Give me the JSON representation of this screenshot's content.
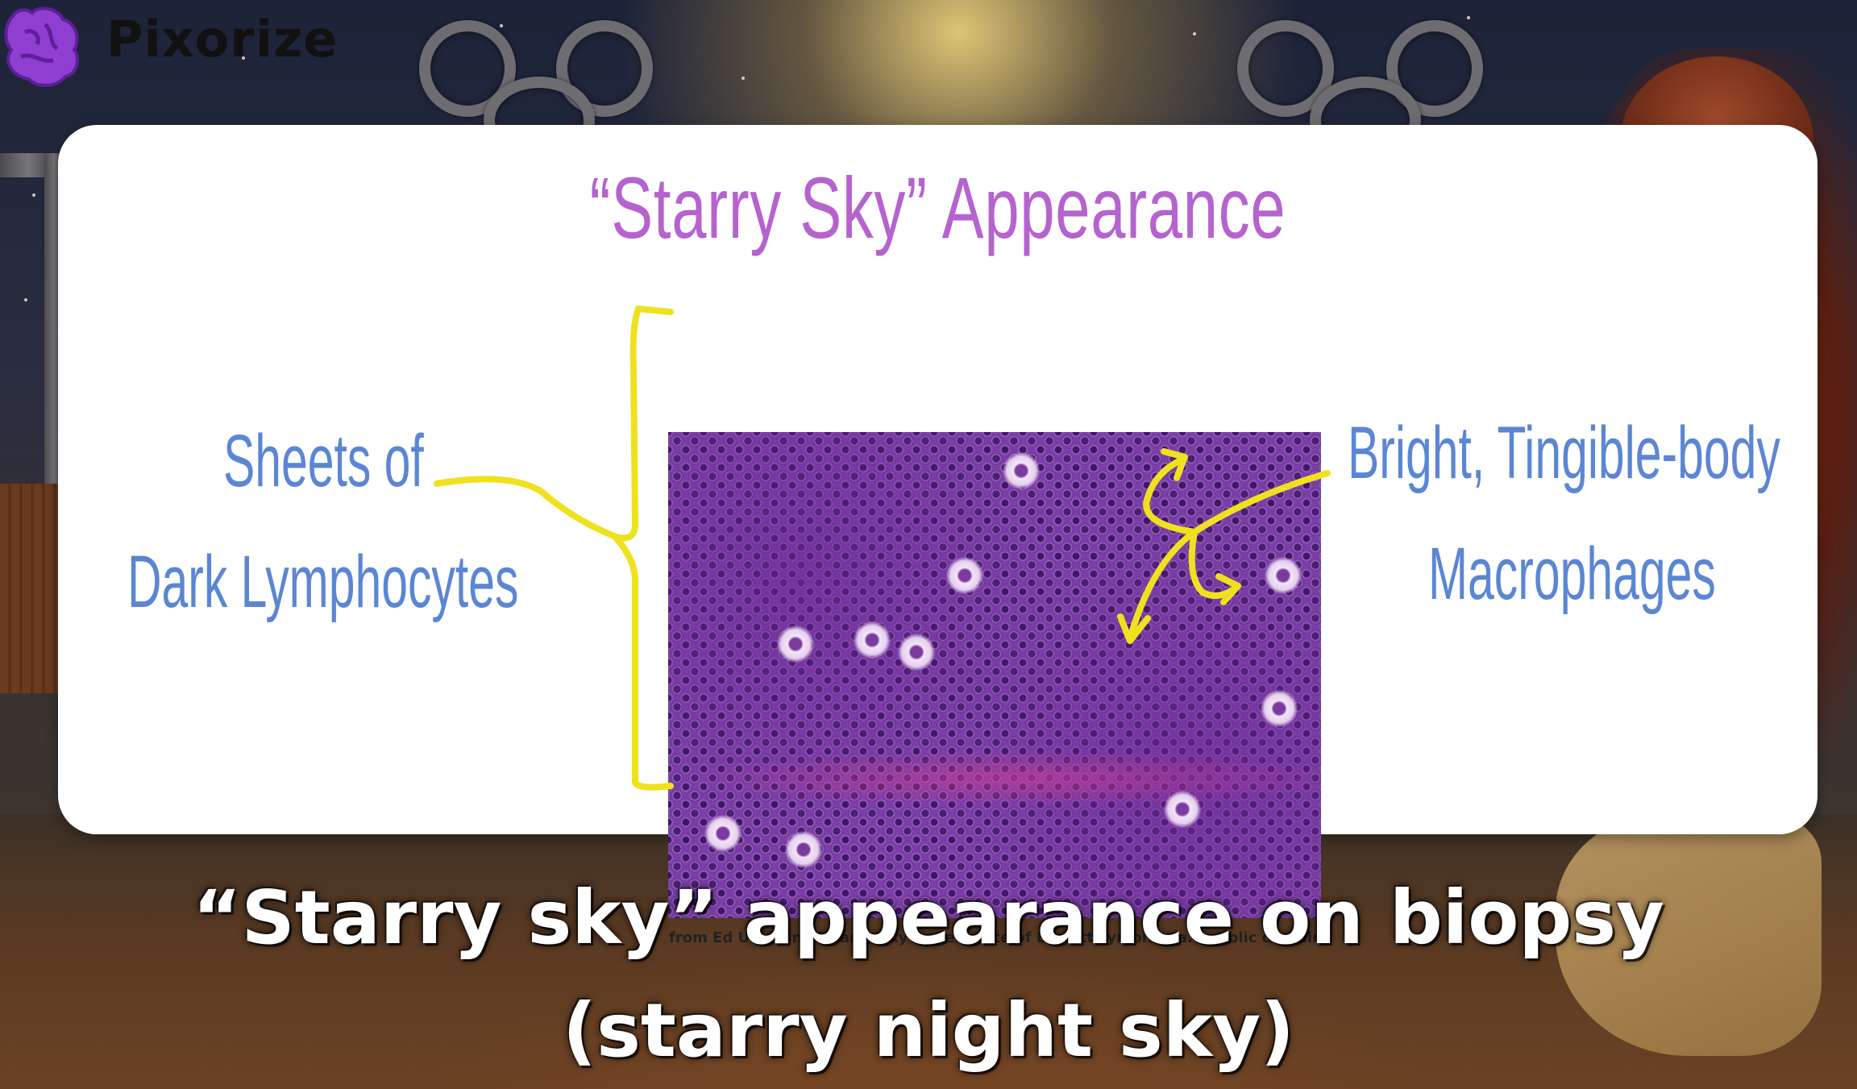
{
  "logo": {
    "text": "Pixorize",
    "icon": "brain-icon"
  },
  "card": {
    "title": "“Starry Sky” Appearance",
    "left_label": {
      "line1": "Sheets of",
      "line2": "Dark Lymphocytes"
    },
    "right_label": {
      "line1": "Bright, Tingible-body",
      "line2": "Macrophages"
    },
    "image_credit": "from Ed Uthman. “Starry Sky Appearance of Burkitt Lymphoma.” public domain."
  },
  "caption": {
    "line1": "“Starry sky” appearance on biopsy",
    "line2": "(starry night sky)"
  },
  "colors": {
    "title": "#b563cf",
    "labels": "#5b86d3",
    "annotation": "#f0e11e",
    "caption": "#ffffff"
  }
}
